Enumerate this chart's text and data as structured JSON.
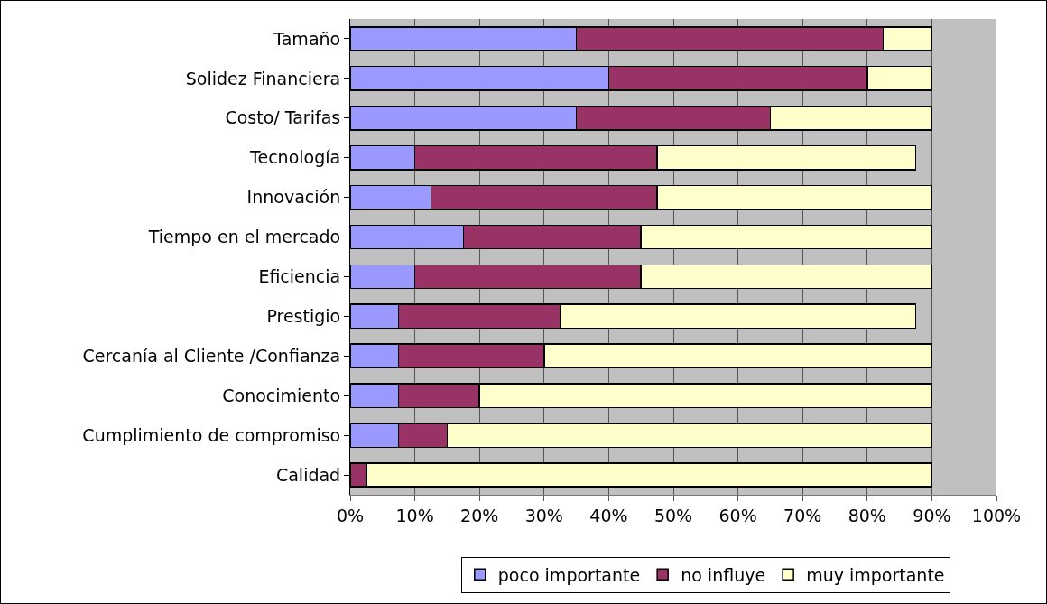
{
  "chart_data": {
    "type": "bar",
    "orientation": "horizontal",
    "stacked": true,
    "categories": [
      "Tamaño",
      "Solidez Financiera",
      "Costo/ Tarifas",
      "Tecnología",
      "Innovación",
      "Tiempo en el mercado",
      "Eficiencia",
      "Prestigio",
      "Cercanía al Cliente /Confianza",
      "Conocimiento",
      "Cumplimiento de compromiso",
      "Calidad"
    ],
    "series": [
      {
        "name": "poco importante",
        "color": "#9999ff",
        "values": [
          35,
          40,
          35,
          10,
          12.5,
          17.5,
          10,
          7.5,
          7.5,
          7.5,
          7.5,
          0
        ]
      },
      {
        "name": "no influye",
        "color": "#993366",
        "values": [
          47.5,
          40,
          30,
          37.5,
          35,
          27.5,
          35,
          25,
          22.5,
          12.5,
          7.5,
          2.5
        ]
      },
      {
        "name": "muy importante",
        "color": "#ffffcc",
        "values": [
          7.5,
          10,
          25,
          40,
          42.5,
          45,
          45,
          55,
          60,
          70,
          75,
          87.5
        ]
      }
    ],
    "xlim": [
      0,
      100
    ],
    "xticks": [
      {
        "value": 0,
        "label": "0%"
      },
      {
        "value": 10,
        "label": "10%"
      },
      {
        "value": 20,
        "label": "20%"
      },
      {
        "value": 30,
        "label": "30%"
      },
      {
        "value": 40,
        "label": "40%"
      },
      {
        "value": 50,
        "label": "50%"
      },
      {
        "value": 60,
        "label": "60%"
      },
      {
        "value": 70,
        "label": "70%"
      },
      {
        "value": 80,
        "label": "80%"
      },
      {
        "value": 90,
        "label": "90%"
      },
      {
        "value": 100,
        "label": "100%"
      }
    ],
    "grid": "x",
    "legend": "bottom"
  }
}
